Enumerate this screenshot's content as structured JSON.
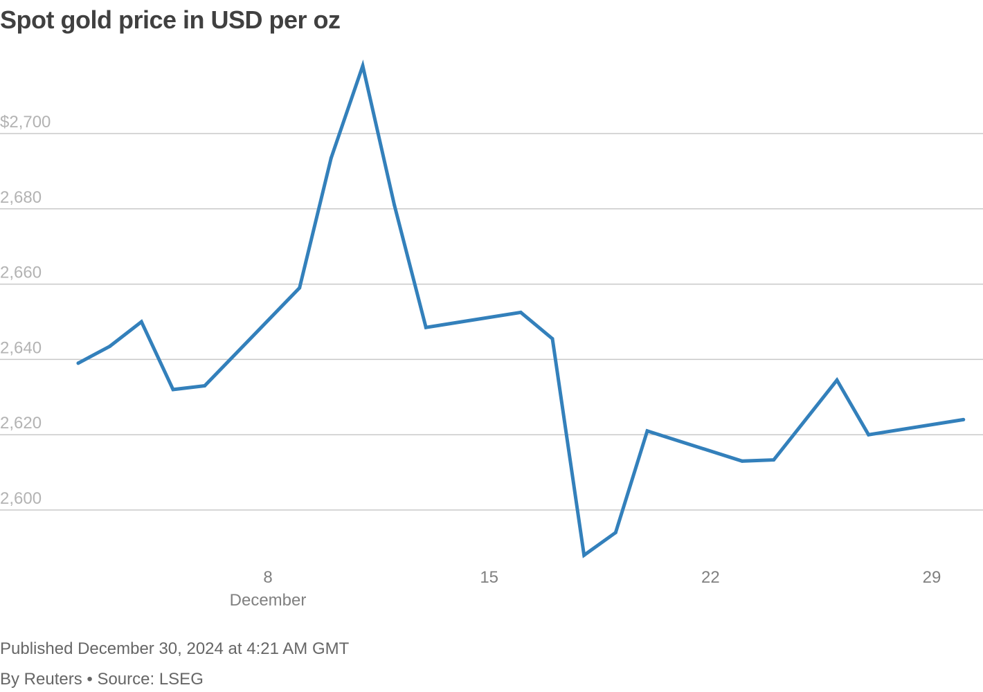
{
  "title": "Spot gold price in USD per oz",
  "footer": {
    "published": "Published December 30, 2024 at 4:21 AM GMT",
    "byline": "By Reuters • Source: LSEG"
  },
  "colors": {
    "line": "#3380bb",
    "grid": "#c8c8c8",
    "y_tick_text": "#b3b3b3",
    "x_tick_text": "#808080",
    "title_text": "#404040"
  },
  "chart_data": {
    "type": "line",
    "title": "Spot gold price in USD per oz",
    "xlabel": "",
    "ylabel": "",
    "ylim": [
      2588,
      2718
    ],
    "grid": "horizontal",
    "y_ticks": [
      {
        "value": 2600,
        "label": "2,600"
      },
      {
        "value": 2620,
        "label": "2,620"
      },
      {
        "value": 2640,
        "label": "2,640"
      },
      {
        "value": 2660,
        "label": "2,660"
      },
      {
        "value": 2680,
        "label": "2,680"
      },
      {
        "value": 2700,
        "label": "$2,700"
      }
    ],
    "x_ticks": [
      {
        "date": "2024-12-08",
        "label": "8",
        "sublabel": "December"
      },
      {
        "date": "2024-12-15",
        "label": "15",
        "sublabel": ""
      },
      {
        "date": "2024-12-22",
        "label": "22",
        "sublabel": ""
      },
      {
        "date": "2024-12-29",
        "label": "29",
        "sublabel": ""
      }
    ],
    "series": [
      {
        "points": [
          {
            "x": "2024-12-02",
            "y": 2639
          },
          {
            "x": "2024-12-03",
            "y": 2643.5
          },
          {
            "x": "2024-12-04",
            "y": 2650
          },
          {
            "x": "2024-12-05",
            "y": 2632
          },
          {
            "x": "2024-12-06",
            "y": 2633
          },
          {
            "x": "2024-12-09",
            "y": 2659
          },
          {
            "x": "2024-12-10",
            "y": 2693.5
          },
          {
            "x": "2024-12-11",
            "y": 2718
          },
          {
            "x": "2024-12-12",
            "y": 2681
          },
          {
            "x": "2024-12-13",
            "y": 2648.5
          },
          {
            "x": "2024-12-16",
            "y": 2652.5
          },
          {
            "x": "2024-12-17",
            "y": 2645.5
          },
          {
            "x": "2024-12-18",
            "y": 2588
          },
          {
            "x": "2024-12-19",
            "y": 2594
          },
          {
            "x": "2024-12-20",
            "y": 2621
          },
          {
            "x": "2024-12-23",
            "y": 2613
          },
          {
            "x": "2024-12-24",
            "y": 2613.3
          },
          {
            "x": "2024-12-26",
            "y": 2634.5
          },
          {
            "x": "2024-12-27",
            "y": 2620
          },
          {
            "x": "2024-12-30",
            "y": 2624
          }
        ]
      }
    ]
  }
}
